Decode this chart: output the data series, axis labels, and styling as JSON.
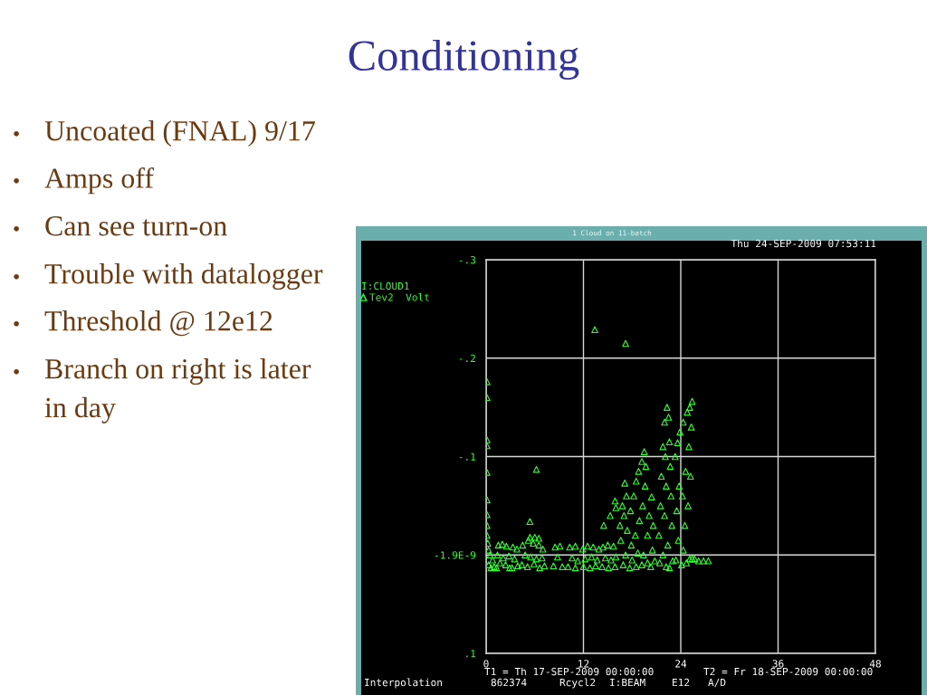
{
  "chart_data": {
    "type": "scatter",
    "title": "Conditioning",
    "subtitle": "1 Cloud on 11-batch",
    "ylabel": "I:CLOUD1",
    "xlabel": "I:BEAM",
    "xlim": [
      0,
      48
    ],
    "xticks": [
      0,
      12,
      24,
      36,
      48
    ],
    "ylim": [
      0.1,
      -0.3
    ],
    "yticks": [
      {
        "value": -0.3,
        "label": "-.3"
      },
      {
        "value": -0.2,
        "label": "-.2"
      },
      {
        "value": -0.1,
        "label": "-.1"
      },
      {
        "value": -1.9e-09,
        "label": "-1.9E-9"
      },
      {
        "value": 0.1,
        "label": ".1"
      }
    ],
    "grid": true,
    "legend": "top left",
    "marker": "triangle",
    "series": [
      {
        "name": "Tev2  Volt",
        "color": "#2cff2c",
        "x": [
          0.1,
          0.1,
          0.1,
          0.1,
          0.1,
          0.1,
          0.1,
          0.1,
          0.1,
          0.2,
          0.3,
          0.5,
          0.8,
          0.3,
          0.6,
          1.0,
          1.5,
          2.0,
          2.5,
          1.4,
          2.1,
          2.8,
          1.7,
          2.4,
          1.3,
          2.9,
          3.3,
          3.8,
          3.5,
          3.9,
          3.2,
          4.5,
          5.2,
          5.8,
          6.5,
          7.0,
          4.8,
          5.5,
          6.2,
          6.9,
          4.4,
          5.1,
          5.9,
          6.6,
          7.2,
          5.4,
          6.2,
          5.4,
          6.0,
          6.5,
          13.4,
          17.2,
          8.5,
          9.1,
          8.8,
          8.3,
          9.4,
          10.3,
          11.0,
          10.6,
          11.3,
          10.1,
          11.0,
          11.9,
          12.5,
          13.2,
          13.9,
          12.2,
          13.0,
          13.7,
          12.0,
          12.8,
          13.5,
          14.4,
          15.0,
          15.7,
          14.7,
          15.4,
          16.0,
          14.3,
          15.1,
          15.9,
          14.5,
          15.3,
          15.9,
          16.0,
          16.5,
          16.8,
          17.1,
          17.3,
          17.0,
          16.6,
          17.4,
          17.8,
          18.2,
          18.5,
          18.8,
          19.2,
          19.5,
          19.7,
          19.6,
          19.3,
          18.9,
          18.4,
          17.9,
          17.2,
          18.0,
          18.7,
          19.4,
          19.9,
          20.1,
          16.9,
          17.7,
          18.5,
          19.2,
          19.9,
          20.4,
          20.6,
          20.5,
          20.8,
          20.3,
          21.3,
          21.5,
          21.6,
          21.8,
          22.0,
          22.3,
          22.5,
          22.6,
          22.7,
          22.8,
          22.9,
          22.1,
          22.2,
          22.0,
          22.4,
          21.8,
          21.4,
          22.2,
          23.0,
          22.6,
          23.3,
          23.6,
          23.9,
          24.3,
          24.8,
          25.1,
          25.4,
          25.3,
          25.0,
          24.6,
          24.2,
          23.8,
          23.5,
          24.5,
          24.9,
          25.2,
          23.7,
          24.3,
          23.4,
          24.1,
          24.7,
          25.1,
          25.4,
          25.7,
          26.2,
          26.8,
          27.4
        ],
        "values": [
          -0.176,
          -0.16,
          -0.117,
          -0.111,
          -0.084,
          -0.056,
          -0.041,
          -0.03,
          -0.02,
          -0.012,
          -0.005,
          0.0,
          0.005,
          0.01,
          0.013,
          0.012,
          -0.01,
          -0.011,
          -0.009,
          0.0,
          0.003,
          0.001,
          0.008,
          0.01,
          0.013,
          0.013,
          -0.008,
          -0.006,
          0.004,
          0.011,
          0.013,
          -0.01,
          -0.015,
          -0.012,
          -0.01,
          -0.006,
          0.0,
          0.002,
          0.004,
          0.003,
          0.01,
          0.012,
          0.009,
          0.013,
          0.011,
          -0.034,
          -0.087,
          -0.018,
          -0.018,
          -0.017,
          -0.229,
          -0.215,
          -0.008,
          -0.009,
          0.002,
          0.011,
          0.012,
          -0.008,
          -0.009,
          0.003,
          0.006,
          0.012,
          0.013,
          -0.006,
          -0.009,
          -0.008,
          -0.006,
          0.004,
          0.002,
          0.005,
          0.012,
          0.013,
          0.011,
          -0.008,
          -0.01,
          -0.009,
          0.003,
          0.005,
          0.002,
          0.012,
          0.013,
          0.012,
          -0.03,
          -0.04,
          -0.055,
          -0.048,
          -0.03,
          -0.05,
          -0.073,
          -0.06,
          -0.04,
          -0.015,
          -0.025,
          -0.045,
          -0.06,
          -0.075,
          -0.085,
          -0.095,
          -0.105,
          -0.09,
          -0.07,
          -0.05,
          -0.035,
          -0.02,
          -0.01,
          0.0,
          0.005,
          -0.002,
          0.0,
          -0.02,
          -0.04,
          0.01,
          0.013,
          0.012,
          0.01,
          0.008,
          -0.059,
          -0.03,
          -0.005,
          0.006,
          0.012,
          -0.02,
          -0.05,
          -0.08,
          -0.11,
          -0.135,
          -0.15,
          -0.14,
          -0.115,
          -0.09,
          -0.06,
          -0.03,
          -0.1,
          -0.07,
          -0.04,
          -0.01,
          0.0,
          0.008,
          0.012,
          0.006,
          0.013,
          -0.1,
          -0.114,
          -0.125,
          -0.135,
          -0.145,
          -0.15,
          -0.156,
          -0.13,
          -0.11,
          -0.085,
          -0.06,
          -0.07,
          -0.045,
          -0.03,
          -0.05,
          -0.08,
          -0.015,
          -0.005,
          0.005,
          0.01,
          0.008,
          0.004,
          0.004,
          0.004,
          0.006,
          0.006,
          0.006
        ]
      }
    ],
    "annotations": [
      "• Uncoated (FNAL) 9/17",
      "• Amps off",
      "• Can see turn-on",
      "• Trouble with datalogger",
      "• Threshold @ 12e12",
      "• Branch on right is later\nin day",
      "Thu 24-SEP-2009 07:53:11",
      "T1 = Th 17-SEP-2009 00:00:00",
      "T2 = Fr 18-SEP-2009 00:00:00",
      "Interpolation",
      "862374",
      "Rcycl2",
      "E12",
      "A/D"
    ]
  }
}
